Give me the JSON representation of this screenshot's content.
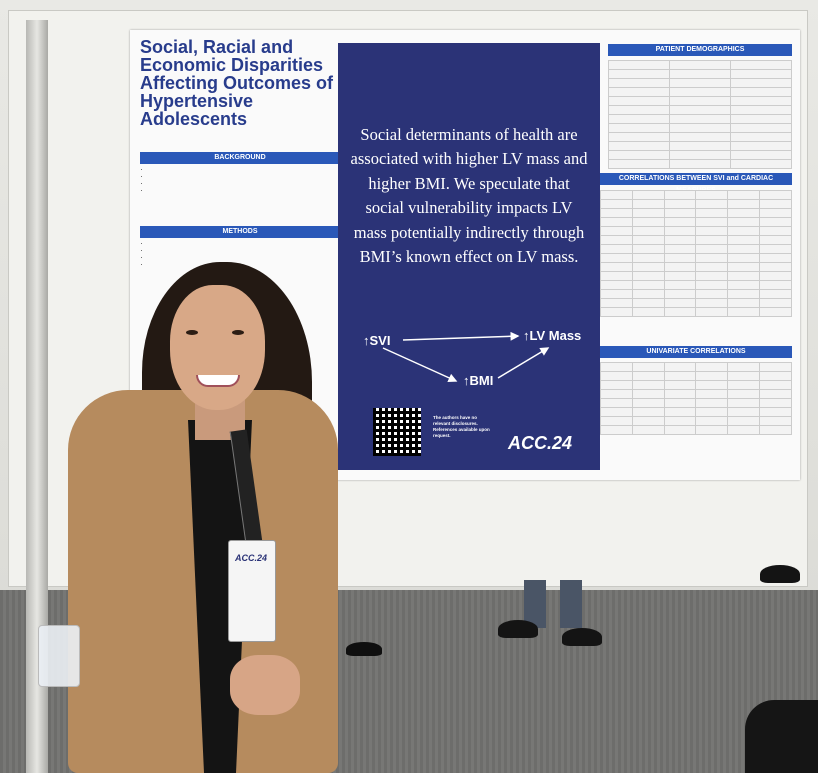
{
  "poster": {
    "title": "Social, Racial and Economic Disparities Affecting Outcomes of Hypertensive Adolescents",
    "sections": {
      "background": "BACKGROUND",
      "methods": "METHODS",
      "patient_demographics": "PATIENT DEMOGRAPHICS",
      "correlations": "CORRELATIONS BETWEEN SVI and CARDIAC MEASURES",
      "univariate": "UNIVARIATE CORRELATIONS"
    },
    "key_message": "Social determinants of health are associated with higher LV mass and higher BMI. We speculate that social vulnerability impacts LV mass potentially indirectly through BMI’s known effect on LV mass.",
    "diagram": {
      "svi": "↑SVI",
      "lv_mass": "↑LV Mass",
      "bmi": "↑BMI"
    },
    "disclosure_note": "The authors have no relevant disclosures. References available upon request.",
    "logo": "ACC.24"
  },
  "badge": {
    "logo": "ACC.24"
  }
}
